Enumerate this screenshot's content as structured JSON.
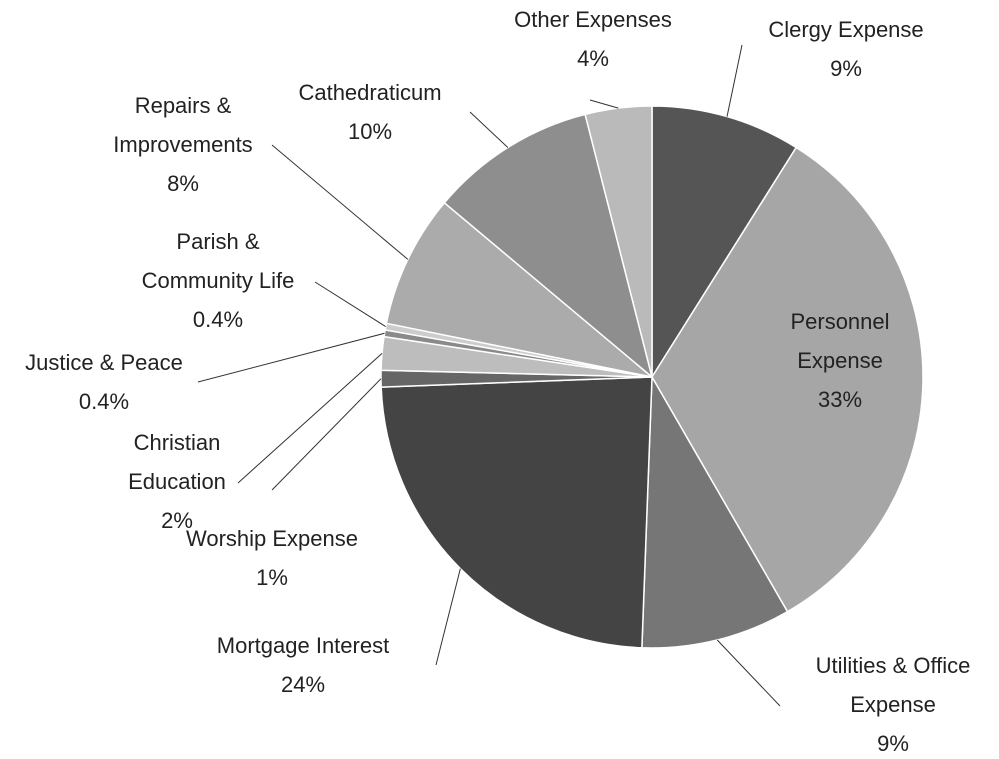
{
  "chart_data": {
    "type": "pie",
    "categories": [
      "Clergy Expense",
      "Personnel Expense",
      "Utilities & Office Expense",
      "Mortgage Interest",
      "Worship Expense",
      "Christian Education",
      "Justice & Peace",
      "Parish & Community Life",
      "Repairs & Improvements",
      "Cathedraticum",
      "Other Expenses"
    ],
    "values": [
      9,
      33,
      9,
      24,
      1,
      2,
      0.4,
      0.4,
      8,
      10,
      4
    ],
    "value_labels": [
      "9%",
      "33%",
      "9%",
      "24%",
      "1%",
      "2%",
      "0.4%",
      "0.4%",
      "8%",
      "10%",
      "4%"
    ],
    "colors": [
      "#555555",
      "#a6a6a6",
      "#767676",
      "#444444",
      "#666666",
      "#bdbdbd",
      "#8a8a8a",
      "#cccccc",
      "#ababab",
      "#8e8e8e",
      "#bababa"
    ]
  }
}
